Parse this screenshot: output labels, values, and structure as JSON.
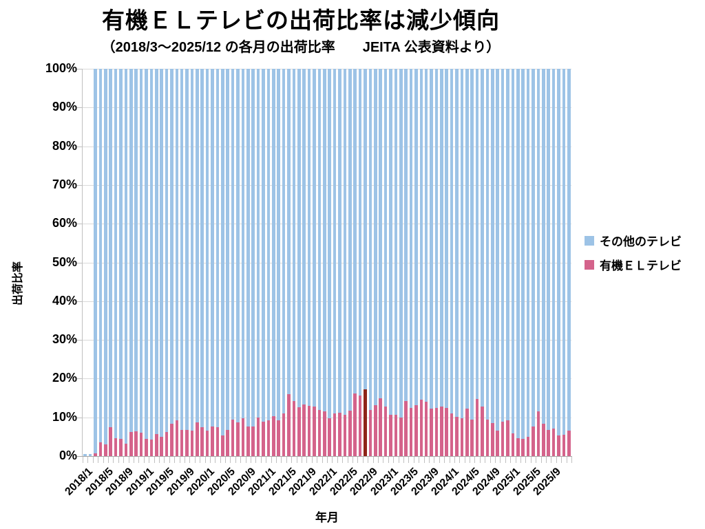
{
  "title": "有機ＥＬテレビの出荷比率は減少傾向",
  "subtitle": "（2018/3～2025/12 の各月の出荷比率　　JEITA 公表資料より）",
  "legend": {
    "items": [
      {
        "label": "その他のテレビ",
        "color": "#9dc3e6"
      },
      {
        "label": "有機ＥＬテレビ",
        "color": "#d4638b"
      }
    ]
  },
  "colors": {
    "other_tv": "#9dc3e6",
    "oled_tv": "#d4638b",
    "highlight_bar": "#8e2418",
    "gridline": "#d9d9d9",
    "axis": "#bfbfbf"
  },
  "chart_data": {
    "type": "bar",
    "stacked": true,
    "stack_total": 100,
    "title": "有機ＥＬテレビの出荷比率は減少傾向",
    "subtitle": "（2018/3～2025/12 の各月の出荷比率　　JEITA 公表資料より）",
    "xlabel": "年月",
    "ylabel": "出荷比率",
    "ylim": [
      0,
      100
    ],
    "ytick_step": 10,
    "ytick_labels": [
      "0%",
      "10%",
      "20%",
      "30%",
      "40%",
      "50%",
      "60%",
      "70%",
      "80%",
      "90%",
      "100%"
    ],
    "x_start": "2018/1",
    "x_end": "2025/12",
    "months_per_bar": 1,
    "xtick_labels": [
      "2018/1",
      "2018/5",
      "2018/9",
      "2019/1",
      "2019/5",
      "2019/9",
      "2020/1",
      "2020/5",
      "2020/9",
      "2021/1",
      "2021/5",
      "2021/9",
      "2022/1",
      "2022/5",
      "2022/9",
      "2023/1",
      "2023/5",
      "2023/9",
      "2024/1",
      "2024/5",
      "2024/9",
      "2025/1",
      "2025/5",
      "2025/9"
    ],
    "xtick_every_n_months": 4,
    "grid": true,
    "legend_position": "right",
    "no_data_months": [
      "2018/1",
      "2018/2"
    ],
    "highlight": {
      "month": "2022/8",
      "index": 55,
      "value": 17.3,
      "color": "#8e2418"
    },
    "series": [
      {
        "name": "有機ＥＬテレビ",
        "color": "#d4638b",
        "values": [
          null,
          null,
          0.7,
          3.6,
          3.0,
          7.4,
          4.7,
          4.4,
          3.2,
          6.2,
          6.4,
          6.1,
          4.4,
          4.2,
          5.6,
          5.0,
          6.2,
          8.3,
          9.2,
          6.8,
          6.8,
          6.6,
          8.7,
          7.4,
          6.6,
          7.6,
          7.4,
          5.3,
          6.7,
          9.5,
          8.7,
          9.8,
          7.7,
          7.6,
          9.9,
          8.9,
          9.3,
          10.3,
          9.2,
          11.0,
          15.9,
          14.3,
          12.7,
          13.4,
          13.0,
          12.8,
          11.9,
          11.6,
          9.8,
          11.0,
          11.2,
          10.7,
          11.8,
          16.2,
          15.7,
          17.3,
          11.9,
          13.2,
          15.0,
          12.8,
          10.7,
          10.7,
          9.9,
          14.2,
          12.5,
          13.2,
          14.5,
          14.1,
          12.2,
          12.5,
          12.8,
          12.5,
          11.0,
          10.1,
          9.8,
          12.2,
          9.5,
          14.7,
          12.8,
          9.5,
          8.6,
          6.5,
          8.9,
          9.2,
          5.9,
          4.7,
          4.4,
          5.0,
          7.7,
          11.5,
          8.3,
          6.8,
          7.1,
          5.3,
          5.5,
          6.5
        ]
      },
      {
        "name": "その他のテレビ",
        "color": "#9dc3e6",
        "values": [
          null,
          null,
          99.3,
          96.4,
          97.0,
          92.6,
          95.3,
          95.6,
          96.8,
          93.8,
          93.6,
          93.9,
          95.6,
          95.8,
          94.4,
          95.0,
          93.8,
          91.7,
          90.8,
          93.2,
          93.2,
          93.4,
          91.3,
          92.6,
          93.4,
          92.4,
          92.6,
          94.7,
          93.3,
          90.5,
          91.3,
          90.2,
          92.3,
          92.4,
          90.1,
          91.1,
          90.7,
          89.7,
          90.8,
          89.0,
          84.1,
          85.7,
          87.3,
          86.6,
          87.0,
          87.2,
          88.1,
          88.4,
          90.2,
          89.0,
          88.8,
          89.3,
          88.2,
          83.8,
          84.3,
          82.7,
          88.1,
          86.8,
          85.0,
          87.2,
          89.3,
          89.3,
          90.1,
          85.8,
          87.5,
          86.8,
          85.5,
          85.9,
          87.8,
          87.5,
          87.2,
          87.5,
          89.0,
          89.9,
          90.2,
          87.8,
          90.5,
          85.3,
          87.2,
          90.5,
          91.4,
          93.5,
          91.1,
          90.8,
          94.1,
          95.3,
          95.6,
          95.0,
          92.3,
          88.5,
          91.7,
          93.2,
          92.9,
          94.7,
          94.5,
          93.5
        ]
      }
    ]
  }
}
